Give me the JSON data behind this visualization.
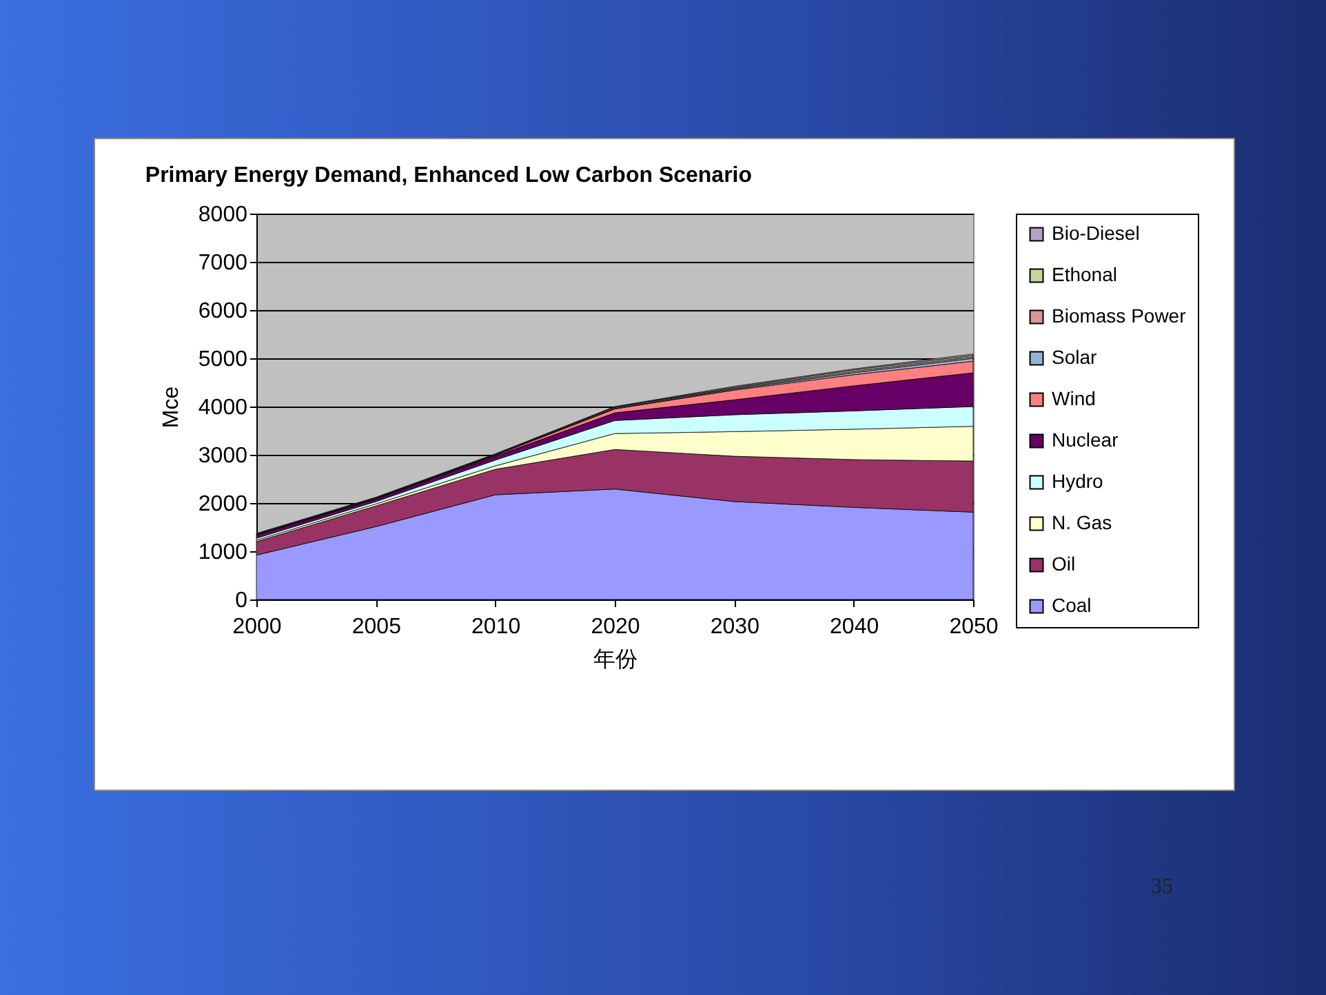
{
  "chart_data": {
    "type": "area",
    "stacked": true,
    "title": "Primary Energy Demand, Enhanced Low Carbon Scenario",
    "xlabel": "年份",
    "ylabel": "Mce",
    "categories": [
      "2000",
      "2005",
      "2010",
      "2020",
      "2030",
      "2040",
      "2050"
    ],
    "series": [
      {
        "name": "Coal",
        "color": "#9999ff",
        "values": [
          920,
          1510,
          2170,
          2290,
          2030,
          1910,
          1810
        ]
      },
      {
        "name": "Oil",
        "color": "#993366",
        "values": [
          280,
          430,
          530,
          820,
          940,
          990,
          1060
        ]
      },
      {
        "name": "N. Gas",
        "color": "#ffffcc",
        "values": [
          30,
          40,
          70,
          330,
          510,
          630,
          720
        ]
      },
      {
        "name": "Hydro",
        "color": "#ccffff",
        "values": [
          40,
          50,
          120,
          270,
          350,
          380,
          410
        ]
      },
      {
        "name": "Nuclear",
        "color": "#660066",
        "values": [
          60,
          50,
          80,
          160,
          310,
          520,
          700
        ]
      },
      {
        "name": "Wind",
        "color": "#ff8080",
        "values": [
          10,
          10,
          20,
          80,
          200,
          230,
          240
        ]
      },
      {
        "name": "Solar",
        "color": "#95b3d7",
        "values": [
          0,
          0,
          0,
          10,
          20,
          40,
          60
        ]
      },
      {
        "name": "Biomass Power",
        "color": "#d99694",
        "values": [
          10,
          10,
          10,
          20,
          20,
          30,
          30
        ]
      },
      {
        "name": "Ethonal",
        "color": "#c3d69b",
        "values": [
          10,
          10,
          10,
          10,
          20,
          30,
          30
        ]
      },
      {
        "name": "Bio-Diesel",
        "color": "#b3a2c7",
        "values": [
          10,
          10,
          10,
          10,
          20,
          20,
          30
        ]
      }
    ],
    "ylim": [
      0,
      8000
    ],
    "yticks": [
      0,
      1000,
      2000,
      3000,
      4000,
      5000,
      6000,
      7000,
      8000
    ],
    "grid": "y",
    "legend": "right",
    "annotations": [
      "35"
    ]
  }
}
